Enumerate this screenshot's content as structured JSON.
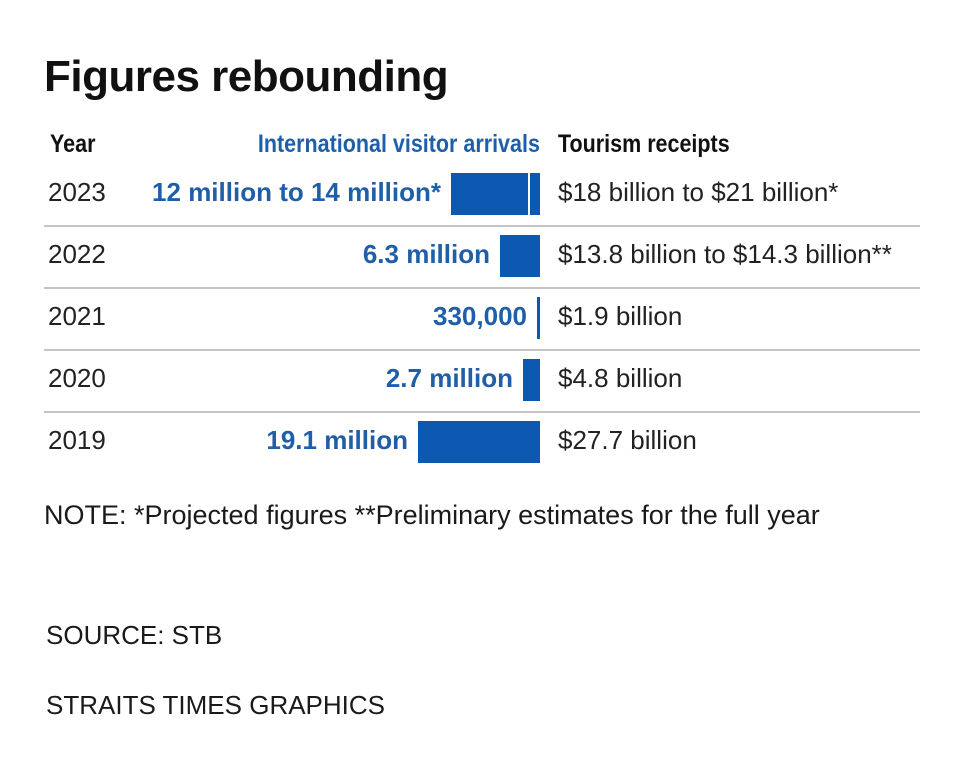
{
  "title": "Figures rebounding",
  "headers": {
    "year": "Year",
    "arrivals": "International visitor arrivals",
    "receipts": "Tourism receipts"
  },
  "chart_data": {
    "type": "bar",
    "orientation": "horizontal",
    "categories": [
      "2023",
      "2022",
      "2021",
      "2020",
      "2019"
    ],
    "series": [
      {
        "name": "International visitor arrivals",
        "values": [
          13000000,
          6300000,
          330000,
          2700000,
          19100000
        ],
        "labels": [
          "12 million to 14 million*",
          "6.3 million",
          "330,000",
          "2.7 million",
          "19.1 million"
        ],
        "ranges": [
          [
            12000000,
            14000000
          ],
          null,
          null,
          null,
          null
        ]
      }
    ],
    "receipts": [
      "$18 billion to $21 billion*",
      "$13.8 billion to $14.3 billion**",
      "$1.9 billion",
      "$4.8 billion",
      "$27.7 billion"
    ],
    "xlim": [
      0,
      19100000
    ],
    "colors": {
      "bar": "#0d58b0",
      "label": "#1f5fa8"
    }
  },
  "note": "NOTE: *Projected figures  **Preliminary estimates for the full year",
  "source": "SOURCE: STB",
  "credit": "STRAITS TIMES GRAPHICS"
}
